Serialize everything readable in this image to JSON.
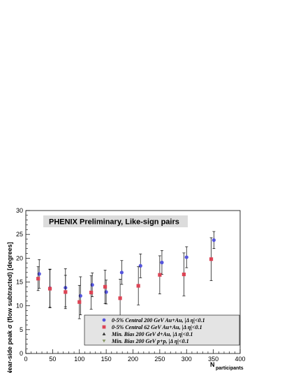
{
  "chart_data": {
    "type": "scatter",
    "title": "PHENIX Preliminary, Like-sign pairs",
    "xlabel": "N",
    "xlabel_sub": "participants",
    "ylabel": "Near-side peak σ (flow subtracted) [degrees]",
    "xlim": [
      0,
      400
    ],
    "ylim": [
      0,
      30
    ],
    "x_ticks": [
      "0",
      "50",
      "100",
      "150",
      "200",
      "250",
      "300",
      "350",
      "400"
    ],
    "y_ticks": [
      "0",
      "5",
      "10",
      "15",
      "20",
      "25",
      "30"
    ],
    "grid": false,
    "legend_position": "bottom-right",
    "series": [
      {
        "name": "0-5% Central 200 GeV Au+Au, |Δ η|<0.1",
        "color": "#5555dd",
        "marker": "circle",
        "points": [
          {
            "x": 25,
            "y": 16.7,
            "err": 3.0
          },
          {
            "x": 45,
            "y": 13.7,
            "err": 4.0
          },
          {
            "x": 74,
            "y": 13.8,
            "err": 4.0
          },
          {
            "x": 102,
            "y": 12.1,
            "err": 4.0
          },
          {
            "x": 124,
            "y": 14.4,
            "err": 2.5
          },
          {
            "x": 150,
            "y": 12.9,
            "err": 2.5
          },
          {
            "x": 179,
            "y": 17.0,
            "err": 2.5
          },
          {
            "x": 214,
            "y": 18.4,
            "err": 2.5
          },
          {
            "x": 254,
            "y": 19.1,
            "err": 2.5
          },
          {
            "x": 300,
            "y": 20.2,
            "err": 2.2
          },
          {
            "x": 351,
            "y": 23.8,
            "err": 1.8
          }
        ]
      },
      {
        "name": "0-5% Central 62 GeV Au+Au, |Δ η|<0.1",
        "color": "#dd4455",
        "marker": "square",
        "points": [
          {
            "x": 23,
            "y": 15.7,
            "err": 2.5
          },
          {
            "x": 45,
            "y": 13.6,
            "err": 4.0
          },
          {
            "x": 74,
            "y": 12.9,
            "err": 3.5
          },
          {
            "x": 100,
            "y": 10.8,
            "err": 3.5
          },
          {
            "x": 122,
            "y": 12.8,
            "err": 3.5
          },
          {
            "x": 148,
            "y": 14.0,
            "err": 3.5
          },
          {
            "x": 176,
            "y": 11.6,
            "err": 4.0
          },
          {
            "x": 210,
            "y": 14.2,
            "err": 4.0
          },
          {
            "x": 250,
            "y": 16.5,
            "err": 4.0
          },
          {
            "x": 295,
            "y": 16.6,
            "err": 4.5
          },
          {
            "x": 346,
            "y": 19.8,
            "err": 4.5
          }
        ]
      },
      {
        "name": "Min. Bias 200 GeV d+Au, |Δ η|<0.1",
        "color": "#333333",
        "marker": "triangle-up",
        "points": []
      },
      {
        "name": "Min. Bias 200 GeV p+p, |Δ η|<0.1",
        "color": "#889966",
        "marker": "triangle-down",
        "points": []
      }
    ]
  }
}
